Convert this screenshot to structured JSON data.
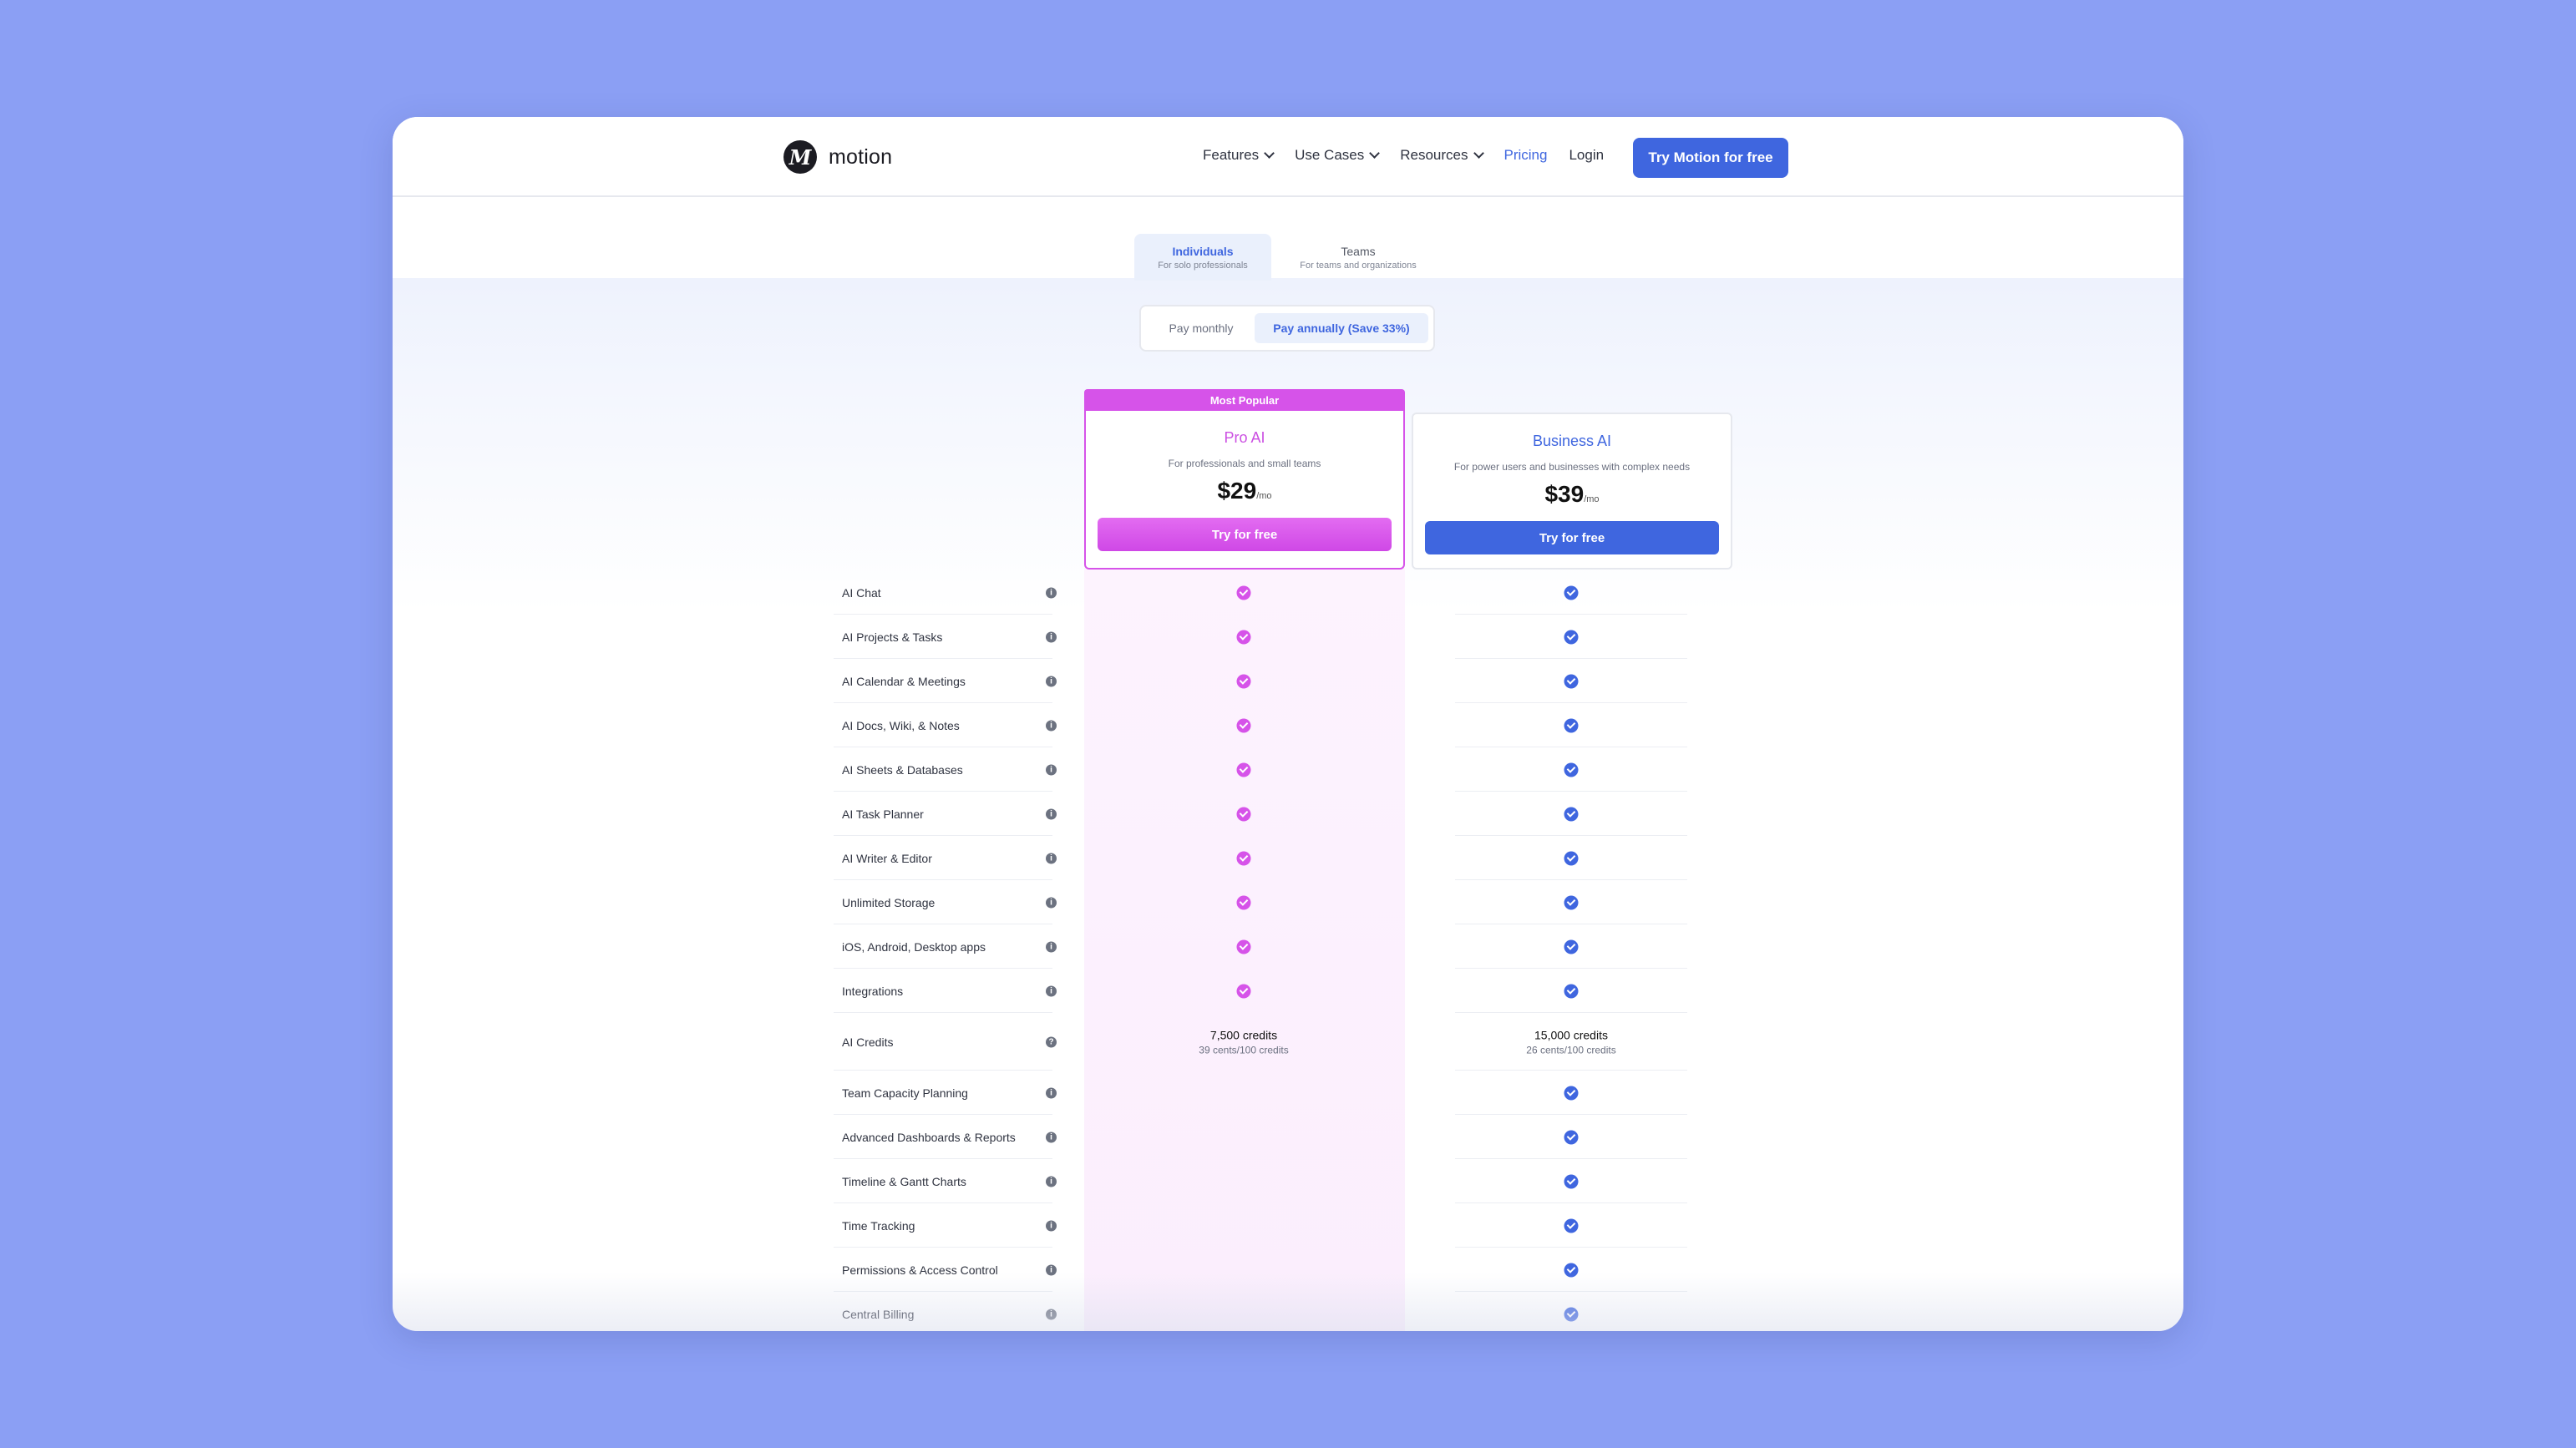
{
  "nav": {
    "logo_text": "motion",
    "links": [
      {
        "label": "Features"
      },
      {
        "label": "Use Cases"
      },
      {
        "label": "Resources"
      },
      {
        "label": "Pricing"
      },
      {
        "label": "Login"
      }
    ],
    "cta": "Try Motion for free"
  },
  "audience_tabs": [
    {
      "title": "Individuals",
      "subtitle": "For solo professionals"
    },
    {
      "title": "Teams",
      "subtitle": "For teams and organizations"
    }
  ],
  "billing": {
    "monthly": "Pay monthly",
    "annual": "Pay annually (Save 33%)"
  },
  "plans": {
    "pro": {
      "badge": "Most Popular",
      "name": "Pro AI",
      "description": "For professionals and small teams",
      "price": "$29",
      "per": "/mo",
      "button": "Try for free"
    },
    "business": {
      "name": "Business AI",
      "description": "For power users and businesses with complex needs",
      "price": "$39",
      "per": "/mo",
      "button": "Try for free"
    }
  },
  "features": [
    {
      "label": "AI Chat",
      "info": "i",
      "pro": true,
      "biz": true
    },
    {
      "label": "AI Projects & Tasks",
      "info": "i",
      "pro": true,
      "biz": true
    },
    {
      "label": "AI Calendar & Meetings",
      "info": "i",
      "pro": true,
      "biz": true
    },
    {
      "label": "AI Docs, Wiki, & Notes",
      "info": "i",
      "pro": true,
      "biz": true
    },
    {
      "label": "AI Sheets & Databases",
      "info": "i",
      "pro": true,
      "biz": true
    },
    {
      "label": "AI Task Planner",
      "info": "i",
      "pro": true,
      "biz": true
    },
    {
      "label": "AI Writer & Editor",
      "info": "i",
      "pro": true,
      "biz": true
    },
    {
      "label": "Unlimited Storage",
      "info": "i",
      "pro": true,
      "biz": true
    },
    {
      "label": "iOS, Android, Desktop apps",
      "info": "i",
      "pro": true,
      "biz": true
    },
    {
      "label": "Integrations",
      "info": "i",
      "pro": true,
      "biz": true
    },
    {
      "label": "AI Credits",
      "info": "?",
      "pro_credits": "7,500 credits",
      "pro_rate": "39 cents/100 credits",
      "biz_credits": "15,000 credits",
      "biz_rate": "26 cents/100 credits"
    },
    {
      "label": "Team Capacity Planning",
      "info": "i",
      "pro": false,
      "biz": true
    },
    {
      "label": "Advanced Dashboards & Reports",
      "info": "i",
      "pro": false,
      "biz": true
    },
    {
      "label": "Timeline & Gantt Charts",
      "info": "i",
      "pro": false,
      "biz": true
    },
    {
      "label": "Time Tracking",
      "info": "i",
      "pro": false,
      "biz": true
    },
    {
      "label": "Permissions & Access Control",
      "info": "i",
      "pro": false,
      "biz": true
    },
    {
      "label": "Central Billing",
      "info": "i",
      "pro": false,
      "biz": true
    }
  ]
}
